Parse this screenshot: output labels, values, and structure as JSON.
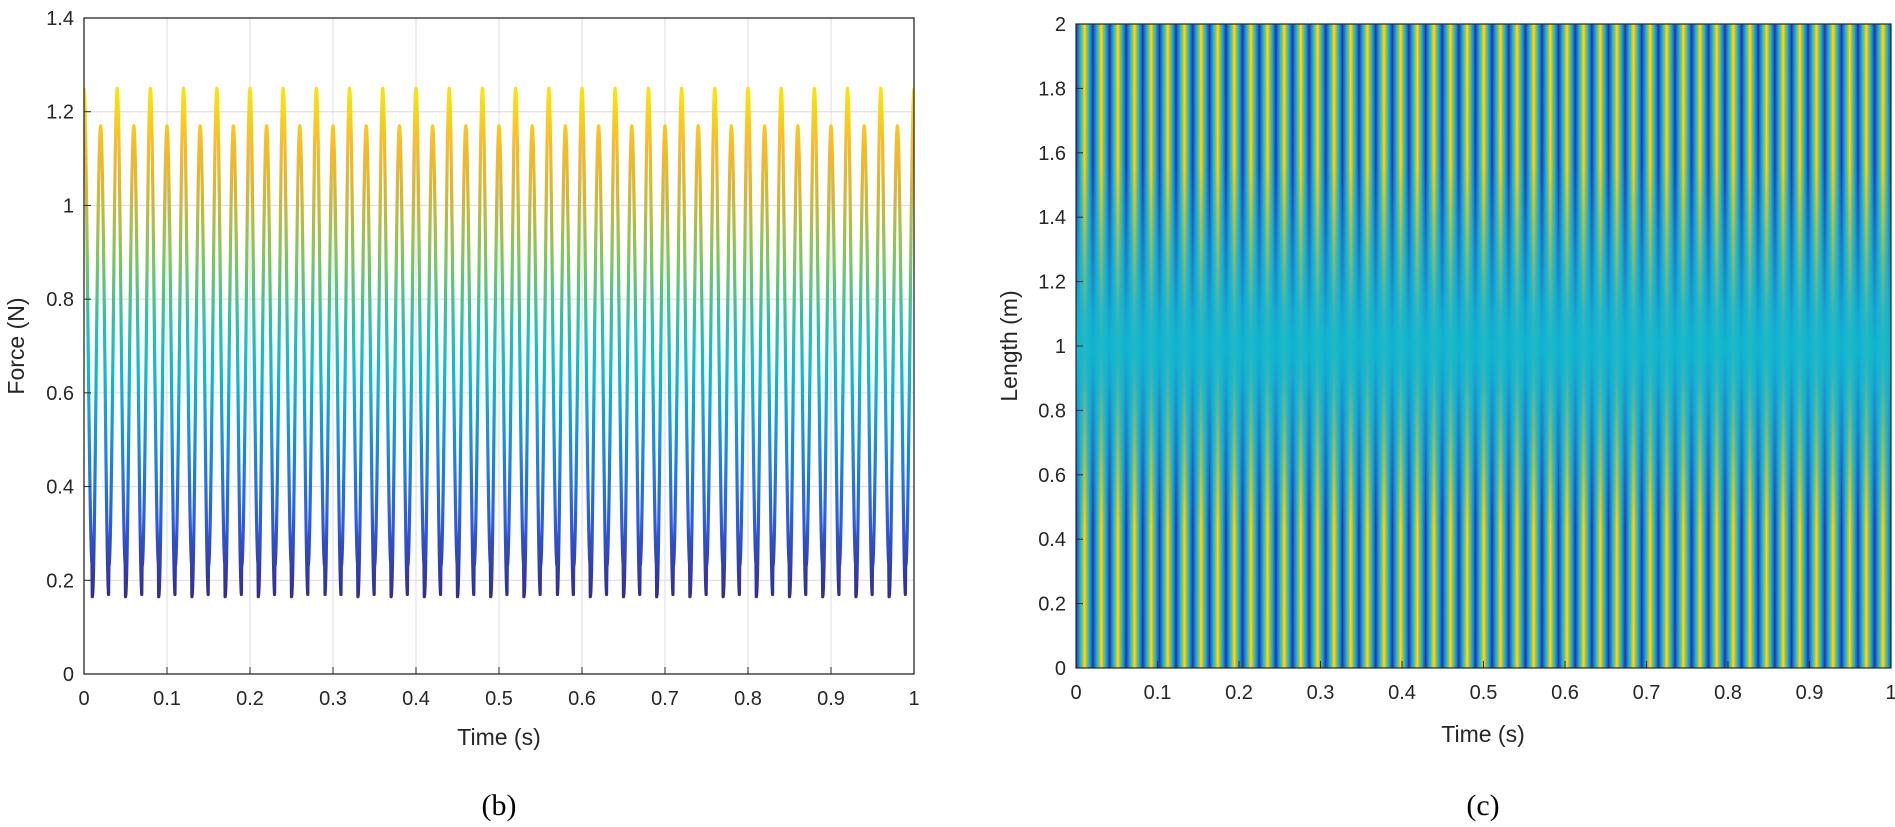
{
  "chart_data": [
    {
      "type": "line",
      "panel_label": "(b)",
      "xlabel": "Time (s)",
      "ylabel": "Force (N)",
      "xlim": [
        0,
        1
      ],
      "ylim": [
        0,
        1.4
      ],
      "xticks": [
        0,
        0.1,
        0.2,
        0.3,
        0.4,
        0.5,
        0.6,
        0.7,
        0.8,
        0.9,
        1
      ],
      "xtick_labels": [
        "0",
        "0.1",
        "0.2",
        "0.3",
        "0.4",
        "0.5",
        "0.6",
        "0.7",
        "0.8",
        "0.9",
        "1"
      ],
      "yticks": [
        0,
        0.2,
        0.4,
        0.6,
        0.8,
        1,
        1.2,
        1.4
      ],
      "ytick_labels": [
        "0",
        "0.2",
        "0.4",
        "0.6",
        "0.8",
        "1",
        "1.2",
        "1.4"
      ],
      "grid": true,
      "colormap": "parula",
      "signal": {
        "mean": 0.7,
        "peak_max": 1.25,
        "peak_alt": 1.17,
        "trough_min": 0.165,
        "trough_alt": 0.23,
        "cycles": 50
      },
      "colors": {
        "low": "#352a87",
        "mid": "#0dbbcf",
        "high": "#f9e10f"
      }
    },
    {
      "type": "heatmap",
      "panel_label": "(c)",
      "xlabel": "Time (s)",
      "ylabel": "Length (m)",
      "xlim": [
        0,
        1
      ],
      "ylim": [
        0,
        2
      ],
      "xticks": [
        0,
        0.1,
        0.2,
        0.3,
        0.4,
        0.5,
        0.6,
        0.7,
        0.8,
        0.9,
        1
      ],
      "xtick_labels": [
        "0",
        "0.1",
        "0.2",
        "0.3",
        "0.4",
        "0.5",
        "0.6",
        "0.7",
        "0.8",
        "0.9",
        "1"
      ],
      "yticks": [
        0,
        0.2,
        0.4,
        0.6,
        0.8,
        1,
        1.2,
        1.4,
        1.6,
        1.8,
        2
      ],
      "ytick_labels": [
        "0",
        "0.2",
        "0.4",
        "0.6",
        "0.8",
        "1",
        "1.2",
        "1.4",
        "1.6",
        "1.8",
        "2"
      ],
      "grid": false,
      "colormap": "parula",
      "stripe_count": 49,
      "node_at_length": 1.0
    }
  ]
}
